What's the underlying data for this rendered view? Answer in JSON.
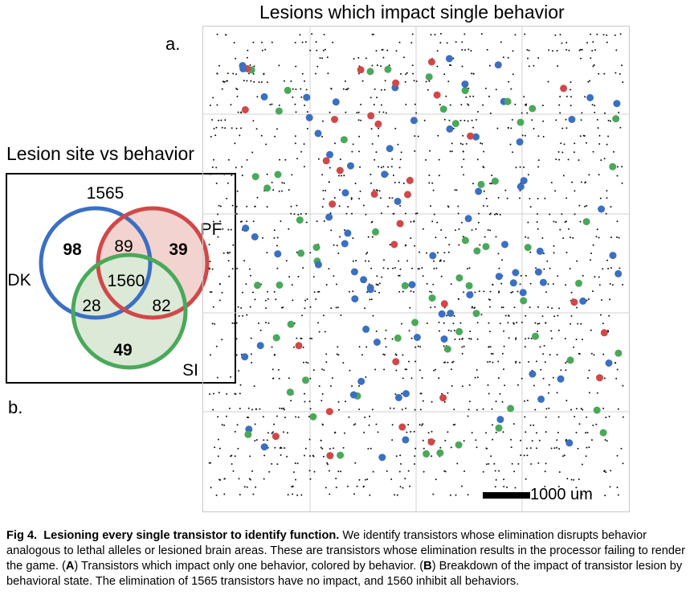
{
  "panel_a": {
    "title": "Lesions which impact single behavior",
    "label": "a.",
    "scale_bar": "1000 um",
    "colors": {
      "DK": "#3b6fc2",
      "PF": "#d04848",
      "SI": "#4aa85a"
    }
  },
  "panel_b": {
    "label": "b.",
    "title": "Lesion site vs behavior",
    "none": "1565",
    "sets": {
      "dk": "DK",
      "pf": "PF",
      "si": "SI"
    },
    "regions": {
      "dk_only": "98",
      "pf_only": "39",
      "si_only": "49",
      "dk_pf": "89",
      "dk_si": "28",
      "pf_si": "82",
      "all": "1560"
    },
    "colors": {
      "dk": "#3b6fc2",
      "pf": "#d04848",
      "si": "#4aa85a",
      "pf_fill": "#f3d3cf",
      "si_fill": "#dbe9d6"
    }
  },
  "caption": {
    "fig_label": "Fig 4.",
    "bold_title": "Lesioning every single transistor to identify function.",
    "text_1": " We identify transistors whose elimination disrupts behavior analogous to lethal alleles or lesioned brain areas. These are transistors whose elimination results in the processor failing to render the game. (",
    "a": "A",
    "text_2": ") Transistors which impact only one behavior, colored by behavior. (",
    "b": "B",
    "text_3": ") Breakdown of the impact of transistor lesion by behavioral state. The elimination of 1565 transistors have no impact, and 1560 inhibit all behaviors."
  }
}
